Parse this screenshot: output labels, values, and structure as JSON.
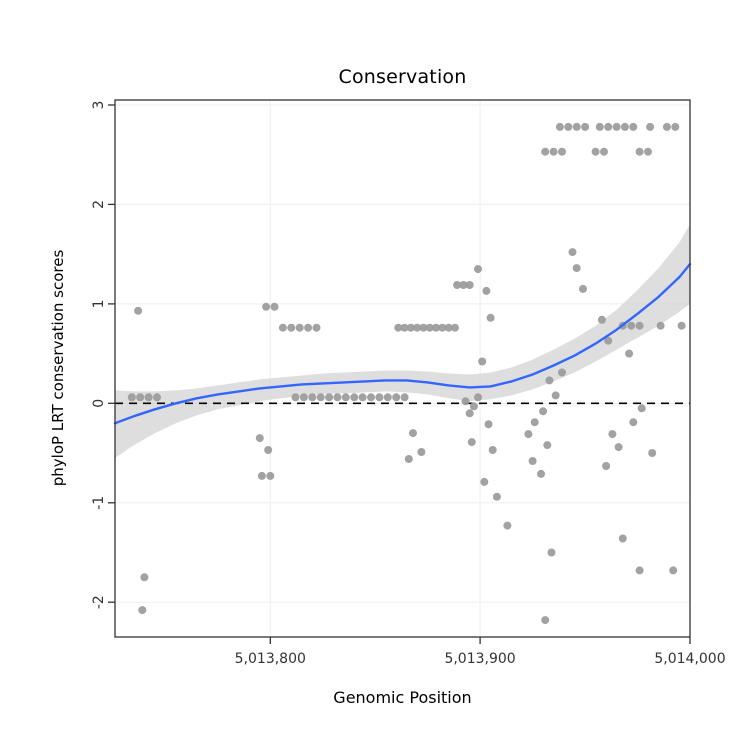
{
  "chart_data": {
    "type": "scatter",
    "title": "Conservation",
    "xlabel": "Genomic Position",
    "ylabel": "phyloP LRT conservation scores",
    "xlim": [
      5013726,
      5014000
    ],
    "ylim": [
      -2.35,
      3.05
    ],
    "grid": "faint major gridlines",
    "legend": "none",
    "x_ticks": [
      {
        "value": 5013800,
        "label": "5,013,800"
      },
      {
        "value": 5013900,
        "label": "5,013,900"
      },
      {
        "value": 5014000,
        "label": "5,014,000"
      }
    ],
    "y_ticks": [
      {
        "value": 3,
        "label": "3"
      },
      {
        "value": 2,
        "label": "2"
      },
      {
        "value": 1,
        "label": "1"
      },
      {
        "value": 0,
        "label": "0"
      },
      {
        "value": -1,
        "label": "-1"
      },
      {
        "value": -2,
        "label": "-2"
      }
    ],
    "hline": 0,
    "colors": {
      "point": "#9A9A9A",
      "line": "#3366FF",
      "ribbon": "#D3D3D3",
      "hline": "#000000",
      "panel_bg": "#FFFFFF",
      "grid": "#F0F0F0",
      "border": "#333333",
      "tick_text": "#333333"
    },
    "points": [
      [
        5013734,
        0.06
      ],
      [
        5013738,
        0.06
      ],
      [
        5013742,
        0.06
      ],
      [
        5013746,
        0.06
      ],
      [
        5013737,
        0.93
      ],
      [
        5013740,
        -1.75
      ],
      [
        5013739,
        -2.08
      ],
      [
        5013798,
        0.97
      ],
      [
        5013802,
        0.97
      ],
      [
        5013806,
        0.76
      ],
      [
        5013810,
        0.76
      ],
      [
        5013814,
        0.76
      ],
      [
        5013818,
        0.76
      ],
      [
        5013822,
        0.76
      ],
      [
        5013795,
        -0.35
      ],
      [
        5013799,
        -0.47
      ],
      [
        5013796,
        -0.73
      ],
      [
        5013800,
        -0.73
      ],
      [
        5013812,
        0.06
      ],
      [
        5013816,
        0.06
      ],
      [
        5013820,
        0.06
      ],
      [
        5013824,
        0.06
      ],
      [
        5013828,
        0.06
      ],
      [
        5013832,
        0.06
      ],
      [
        5013836,
        0.06
      ],
      [
        5013840,
        0.06
      ],
      [
        5013844,
        0.06
      ],
      [
        5013848,
        0.06
      ],
      [
        5013852,
        0.06
      ],
      [
        5013856,
        0.06
      ],
      [
        5013860,
        0.06
      ],
      [
        5013864,
        0.06
      ],
      [
        5013861,
        0.76
      ],
      [
        5013864,
        0.76
      ],
      [
        5013867,
        0.76
      ],
      [
        5013870,
        0.76
      ],
      [
        5013873,
        0.76
      ],
      [
        5013876,
        0.76
      ],
      [
        5013879,
        0.76
      ],
      [
        5013882,
        0.76
      ],
      [
        5013885,
        0.76
      ],
      [
        5013888,
        0.76
      ],
      [
        5013868,
        -0.3
      ],
      [
        5013872,
        -0.49
      ],
      [
        5013866,
        -0.56
      ],
      [
        5013889,
        1.19
      ],
      [
        5013892,
        1.19
      ],
      [
        5013895,
        1.19
      ],
      [
        5013899,
        1.35
      ],
      [
        5013903,
        1.13
      ],
      [
        5013905,
        0.86
      ],
      [
        5013901,
        0.42
      ],
      [
        5013893,
        0.02
      ],
      [
        5013897,
        -0.03
      ],
      [
        5013895,
        -0.1
      ],
      [
        5013899,
        0.06
      ],
      [
        5013904,
        -0.21
      ],
      [
        5013896,
        -0.39
      ],
      [
        5013906,
        -0.47
      ],
      [
        5013902,
        -0.79
      ],
      [
        5013908,
        -0.94
      ],
      [
        5013913,
        -1.23
      ],
      [
        5013938,
        2.78
      ],
      [
        5013942,
        2.78
      ],
      [
        5013946,
        2.78
      ],
      [
        5013950,
        2.78
      ],
      [
        5013957,
        2.78
      ],
      [
        5013961,
        2.78
      ],
      [
        5013965,
        2.78
      ],
      [
        5013969,
        2.78
      ],
      [
        5013973,
        2.78
      ],
      [
        5013981,
        2.78
      ],
      [
        5013989,
        2.78
      ],
      [
        5013993,
        2.78
      ],
      [
        5013931,
        2.53
      ],
      [
        5013935,
        2.53
      ],
      [
        5013939,
        2.53
      ],
      [
        5013955,
        2.53
      ],
      [
        5013959,
        2.53
      ],
      [
        5013976,
        2.53
      ],
      [
        5013980,
        2.53
      ],
      [
        5013944,
        1.52
      ],
      [
        5013946,
        1.36
      ],
      [
        5013949,
        1.15
      ],
      [
        5013958,
        0.84
      ],
      [
        5013968,
        0.78
      ],
      [
        5013972,
        0.78
      ],
      [
        5013976,
        0.78
      ],
      [
        5013986,
        0.78
      ],
      [
        5013996,
        0.78
      ],
      [
        5013961,
        0.63
      ],
      [
        5013971,
        0.5
      ],
      [
        5013939,
        0.31
      ],
      [
        5013933,
        0.23
      ],
      [
        5013936,
        0.08
      ],
      [
        5013930,
        -0.08
      ],
      [
        5013926,
        -0.19
      ],
      [
        5013923,
        -0.31
      ],
      [
        5013932,
        -0.42
      ],
      [
        5013925,
        -0.58
      ],
      [
        5013929,
        -0.71
      ],
      [
        5013963,
        -0.31
      ],
      [
        5013966,
        -0.44
      ],
      [
        5013960,
        -0.63
      ],
      [
        5013977,
        -0.05
      ],
      [
        5013973,
        -0.19
      ],
      [
        5013982,
        -0.5
      ],
      [
        5013968,
        -1.36
      ],
      [
        5013934,
        -1.5
      ],
      [
        5013976,
        -1.68
      ],
      [
        5013992,
        -1.68
      ],
      [
        5013931,
        -2.18
      ]
    ],
    "smooth": [
      [
        5013726,
        -0.2,
        -0.55,
        0.13
      ],
      [
        5013735,
        -0.13,
        -0.42,
        0.12
      ],
      [
        5013745,
        -0.06,
        -0.3,
        0.12
      ],
      [
        5013755,
        0.0,
        -0.2,
        0.13
      ],
      [
        5013765,
        0.05,
        -0.12,
        0.15
      ],
      [
        5013775,
        0.09,
        -0.06,
        0.18
      ],
      [
        5013785,
        0.12,
        -0.02,
        0.21
      ],
      [
        5013795,
        0.15,
        0.02,
        0.24
      ],
      [
        5013805,
        0.17,
        0.05,
        0.26
      ],
      [
        5013815,
        0.19,
        0.07,
        0.28
      ],
      [
        5013825,
        0.2,
        0.09,
        0.3
      ],
      [
        5013835,
        0.21,
        0.1,
        0.31
      ],
      [
        5013845,
        0.22,
        0.11,
        0.32
      ],
      [
        5013855,
        0.23,
        0.12,
        0.33
      ],
      [
        5013865,
        0.23,
        0.11,
        0.33
      ],
      [
        5013875,
        0.21,
        0.09,
        0.32
      ],
      [
        5013885,
        0.18,
        0.05,
        0.3
      ],
      [
        5013895,
        0.16,
        0.02,
        0.29
      ],
      [
        5013905,
        0.17,
        0.04,
        0.31
      ],
      [
        5013915,
        0.22,
        0.08,
        0.36
      ],
      [
        5013925,
        0.29,
        0.14,
        0.44
      ],
      [
        5013935,
        0.38,
        0.22,
        0.54
      ],
      [
        5013945,
        0.48,
        0.31,
        0.65
      ],
      [
        5013955,
        0.6,
        0.42,
        0.78
      ],
      [
        5013965,
        0.74,
        0.54,
        0.94
      ],
      [
        5013975,
        0.9,
        0.66,
        1.14
      ],
      [
        5013985,
        1.07,
        0.78,
        1.36
      ],
      [
        5013995,
        1.27,
        0.92,
        1.62
      ],
      [
        5014000,
        1.4,
        1.0,
        1.8
      ]
    ]
  }
}
